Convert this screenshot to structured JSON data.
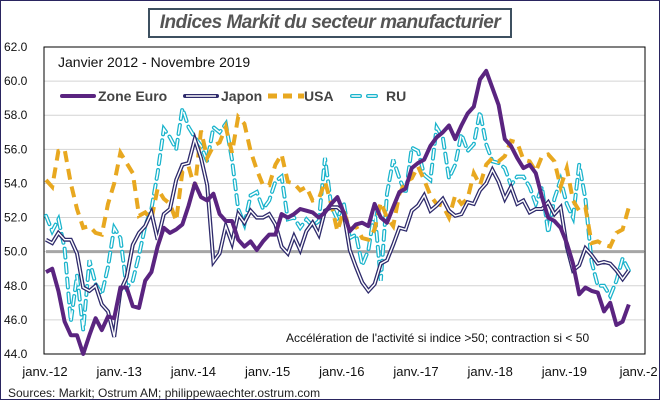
{
  "chart_data": {
    "type": "line",
    "title": "Indices Markit du secteur manufacturier",
    "subtitle": "Janvier 2012 - Novembre 2019",
    "annotation": "Accélération de l'activité si indice >50; contraction si < 50",
    "source": "Sources: Markit; Ostrum AM; philippewaechter.ostrum.com",
    "ylim": [
      44,
      62
    ],
    "yticks": [
      "44.0",
      "46.0",
      "48.0",
      "50.0",
      "52.0",
      "54.0",
      "56.0",
      "58.0",
      "60.0",
      "62.0"
    ],
    "xticks": [
      "janv.-12",
      "janv.-13",
      "janv.-14",
      "janv.-15",
      "janv.-16",
      "janv.-17",
      "janv.-18",
      "janv.-19",
      "janv.-2"
    ],
    "x_start": "2012-01",
    "x_end": "2019-11",
    "reference_line": 50,
    "grid": true,
    "legend_position": "top-left",
    "series": [
      {
        "name": "Zone Euro",
        "color": "#5a2480",
        "style": "solid",
        "values": [
          48.8,
          49.0,
          47.7,
          45.9,
          45.1,
          45.1,
          44.0,
          45.1,
          46.1,
          45.4,
          46.2,
          46.1,
          47.9,
          47.9,
          46.8,
          46.7,
          48.3,
          48.8,
          50.3,
          51.4,
          51.1,
          51.3,
          51.6,
          52.7,
          54.0,
          53.2,
          53.0,
          53.4,
          52.2,
          51.8,
          51.8,
          50.7,
          50.3,
          50.6,
          50.1,
          50.6,
          51.0,
          51.0,
          52.2,
          52.0,
          52.2,
          52.5,
          52.4,
          52.3,
          52.0,
          52.3,
          52.8,
          53.2,
          52.3,
          51.2,
          51.6,
          51.7,
          51.5,
          52.8,
          52.0,
          51.7,
          52.6,
          53.5,
          53.7,
          54.9,
          55.2,
          55.4,
          56.2,
          56.7,
          57.0,
          57.4,
          56.6,
          57.4,
          58.1,
          58.5,
          60.1,
          60.6,
          59.6,
          58.6,
          56.6,
          56.2,
          55.5,
          54.9,
          55.1,
          54.6,
          53.2,
          52.0,
          51.8,
          51.4,
          50.5,
          49.3,
          47.5,
          47.9,
          47.7,
          47.6,
          46.5,
          47.0,
          45.7,
          45.9,
          46.9
        ]
      },
      {
        "name": "Japon",
        "color": "#2e2a6b",
        "style": "double",
        "values": [
          50.7,
          50.5,
          51.1,
          50.7,
          50.7,
          49.9,
          47.9,
          47.7,
          48.0,
          46.9,
          46.5,
          45.0,
          47.7,
          48.5,
          50.4,
          51.1,
          51.5,
          52.3,
          50.7,
          52.2,
          52.5,
          54.2,
          55.1,
          55.2,
          56.6,
          55.5,
          53.9,
          49.4,
          49.9,
          51.5,
          50.5,
          52.2,
          51.7,
          52.4,
          52.0,
          52.0,
          52.2,
          51.6,
          50.3,
          49.9,
          50.9,
          50.1,
          51.2,
          51.7,
          51.0,
          52.4,
          52.6,
          52.6,
          52.3,
          50.1,
          49.1,
          48.2,
          47.7,
          48.1,
          49.3,
          49.5,
          50.4,
          51.4,
          51.3,
          52.4,
          52.7,
          53.3,
          52.4,
          52.7,
          53.1,
          52.4,
          52.1,
          52.2,
          52.9,
          52.8,
          53.6,
          54.0,
          54.8,
          54.1,
          53.1,
          53.8,
          52.8,
          53.0,
          52.3,
          52.5,
          52.5,
          52.9,
          52.2,
          52.6,
          50.3,
          48.9,
          49.2,
          50.2,
          49.8,
          49.3,
          49.4,
          49.3,
          48.9,
          48.4,
          48.9
        ]
      },
      {
        "name": "USA",
        "color": "#e8a820",
        "style": "dashed",
        "values": [
          54.2,
          53.8,
          55.9,
          56.0,
          54.0,
          52.5,
          51.4,
          51.5,
          51.1,
          51.0,
          52.8,
          54.0,
          55.8,
          55.2,
          54.6,
          52.1,
          52.3,
          51.9,
          53.7,
          53.1,
          52.8,
          51.8,
          54.7,
          55.0,
          53.7,
          57.1,
          55.5,
          56.2,
          56.4,
          57.3,
          55.8,
          57.9,
          57.5,
          55.9,
          54.8,
          53.9,
          53.9,
          55.1,
          55.7,
          54.1,
          54.0,
          53.6,
          53.8,
          53.0,
          53.1,
          54.1,
          52.8,
          51.2,
          52.4,
          51.3,
          51.5,
          50.8,
          50.7,
          51.3,
          52.9,
          52.0,
          51.5,
          53.4,
          54.1,
          54.3,
          55.0,
          54.2,
          53.3,
          52.8,
          52.7,
          52.0,
          53.3,
          52.8,
          53.1,
          54.6,
          53.9,
          55.1,
          55.5,
          55.3,
          55.6,
          56.5,
          56.4,
          55.4,
          55.3,
          54.7,
          55.6,
          55.7,
          55.3,
          53.8,
          54.9,
          53.0,
          52.4,
          52.6,
          50.5,
          50.6,
          50.4,
          50.3,
          51.1,
          51.3,
          52.6
        ]
      },
      {
        "name": "RU",
        "color": "#1ab4cc",
        "style": "double-dashed",
        "values": [
          52.1,
          51.2,
          51.9,
          50.2,
          45.9,
          48.6,
          45.4,
          49.5,
          48.1,
          47.5,
          49.1,
          51.4,
          50.8,
          47.9,
          48.3,
          49.8,
          51.5,
          52.5,
          54.6,
          57.2,
          56.7,
          56.0,
          58.4,
          57.3,
          56.7,
          56.2,
          55.3,
          57.3,
          57.0,
          57.5,
          55.4,
          52.5,
          51.6,
          53.3,
          53.5,
          52.5,
          53.0,
          54.1,
          54.4,
          51.9,
          52.0,
          51.4,
          51.9,
          51.5,
          51.8,
          55.5,
          52.7,
          51.9,
          52.9,
          50.8,
          51.0,
          49.2,
          50.1,
          52.4,
          48.3,
          53.4,
          55.4,
          54.3,
          53.4,
          56.1,
          55.9,
          54.5,
          54.2,
          57.3,
          56.7,
          54.3,
          55.1,
          56.9,
          55.9,
          56.3,
          58.2,
          56.3,
          55.3,
          55.2,
          54.9,
          53.9,
          54.4,
          54.4,
          53.8,
          52.8,
          53.8,
          51.1,
          53.1,
          54.2,
          52.8,
          52.0,
          55.1,
          53.1,
          49.4,
          48.0,
          48.0,
          47.4,
          48.3,
          49.6,
          48.9
        ]
      }
    ]
  }
}
